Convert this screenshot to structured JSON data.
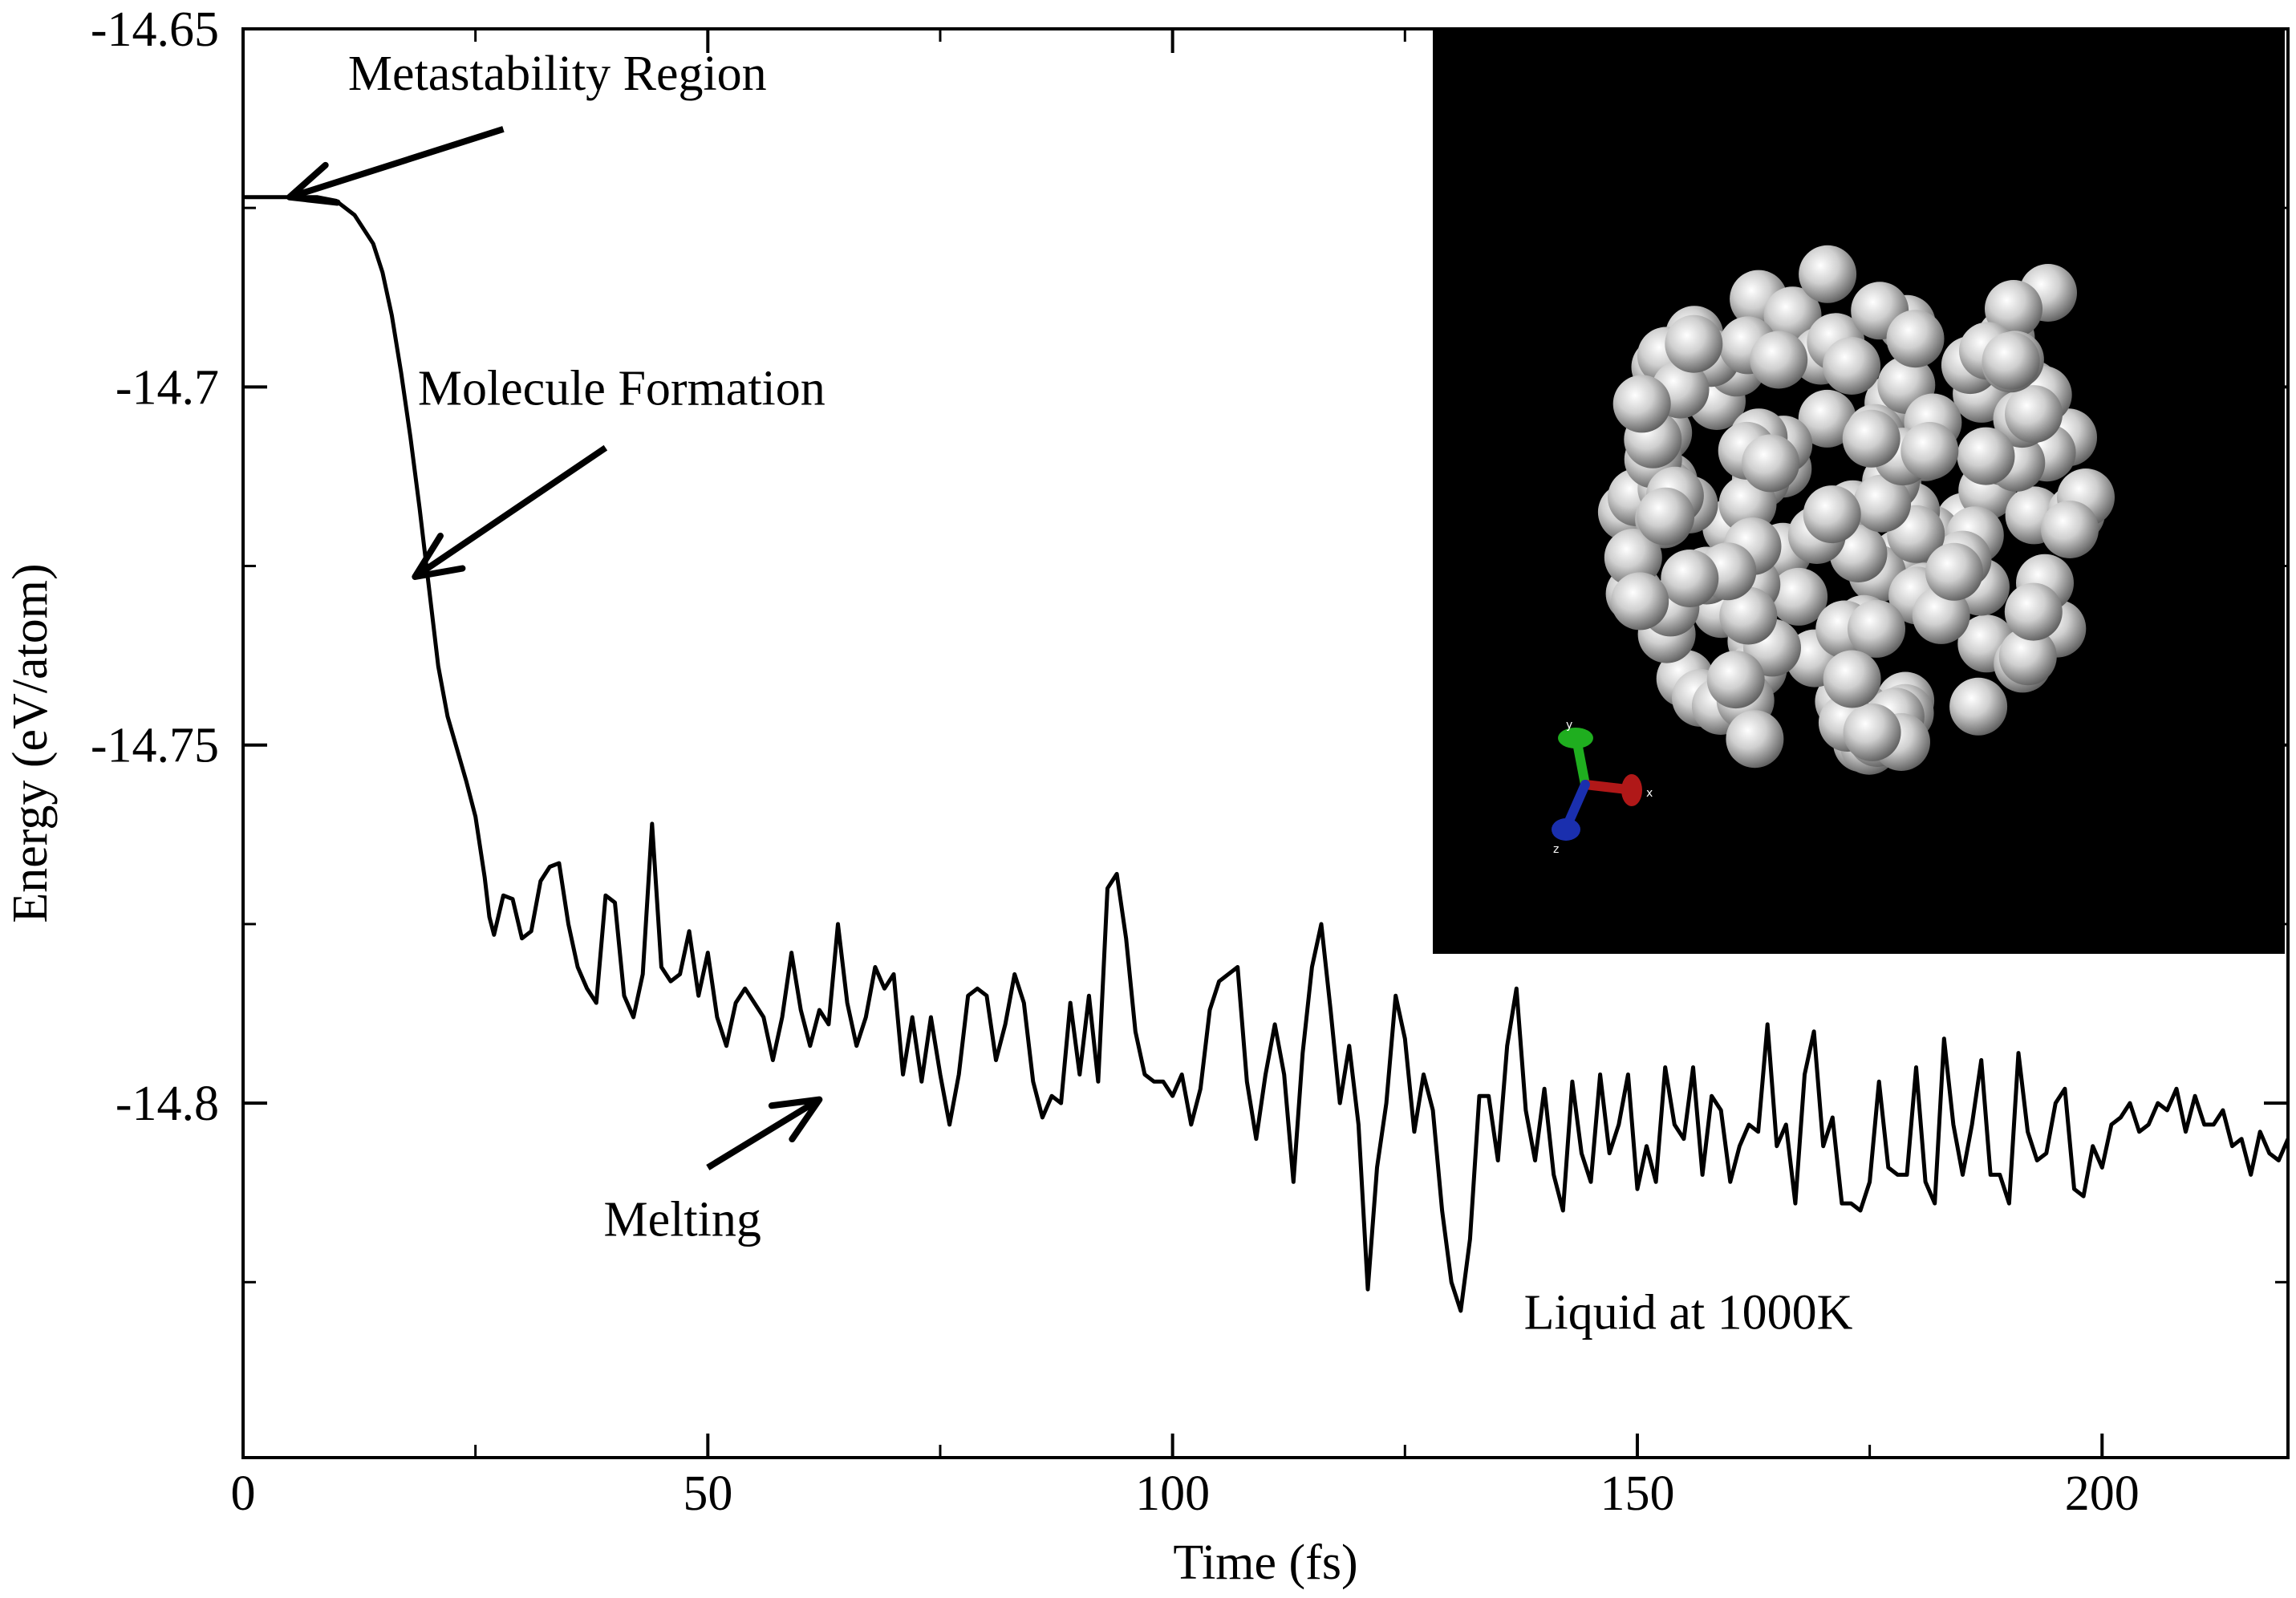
{
  "chart_data": {
    "type": "line",
    "title": "",
    "xlabel": "Time (fs)",
    "ylabel": "Energy (eV/atom)",
    "xlim": [
      0,
      220
    ],
    "ylim": [
      -14.8495,
      -14.65
    ],
    "x_ticks": [
      0,
      50,
      100,
      150,
      200
    ],
    "x_tick_labels": [
      "0",
      "50",
      "100",
      "150",
      "200"
    ],
    "y_ticks": [
      -14.65,
      -14.7,
      -14.75,
      -14.8
    ],
    "y_tick_labels": [
      "-14.65",
      "-14.7",
      "-14.75",
      "-14.8"
    ],
    "x_minor_ticks": [
      25,
      75,
      125,
      175
    ],
    "y_minor_ticks": [
      -14.675,
      -14.725,
      -14.775,
      -14.825
    ],
    "grid": false,
    "series": [
      {
        "name": "Energy",
        "color": "#000000",
        "points": [
          [
            0,
            -14.6735
          ],
          [
            3,
            -14.6735
          ],
          [
            6,
            -14.6735
          ],
          [
            8,
            -14.6735
          ],
          [
            10,
            -14.674
          ],
          [
            12,
            -14.676
          ],
          [
            14,
            -14.68
          ],
          [
            15,
            -14.684
          ],
          [
            16,
            -14.69
          ],
          [
            17,
            -14.698
          ],
          [
            18,
            -14.707
          ],
          [
            19,
            -14.717
          ],
          [
            20,
            -14.728
          ],
          [
            21,
            -14.739
          ],
          [
            22,
            -14.746
          ],
          [
            23,
            -14.7505
          ],
          [
            24,
            -14.755
          ],
          [
            25,
            -14.76
          ],
          [
            26,
            -14.7685
          ],
          [
            26.5,
            -14.774
          ],
          [
            27,
            -14.7765
          ],
          [
            28,
            -14.771
          ],
          [
            29,
            -14.7715
          ],
          [
            30,
            -14.777
          ],
          [
            31,
            -14.776
          ],
          [
            32,
            -14.769
          ],
          [
            33,
            -14.767
          ],
          [
            34,
            -14.7665
          ],
          [
            35,
            -14.775
          ],
          [
            36,
            -14.781
          ],
          [
            37,
            -14.784
          ],
          [
            38,
            -14.786
          ],
          [
            39,
            -14.771
          ],
          [
            40,
            -14.772
          ],
          [
            41,
            -14.785
          ],
          [
            42,
            -14.788
          ],
          [
            43,
            -14.782
          ],
          [
            44,
            -14.761
          ],
          [
            45,
            -14.781
          ],
          [
            46,
            -14.783
          ],
          [
            47,
            -14.782
          ],
          [
            48,
            -14.776
          ],
          [
            49,
            -14.785
          ],
          [
            50,
            -14.779
          ],
          [
            51,
            -14.788
          ],
          [
            52,
            -14.792
          ],
          [
            53,
            -14.786
          ],
          [
            54,
            -14.784
          ],
          [
            55,
            -14.786
          ],
          [
            56,
            -14.788
          ],
          [
            57,
            -14.794
          ],
          [
            58,
            -14.788
          ],
          [
            59,
            -14.779
          ],
          [
            60,
            -14.787
          ],
          [
            61,
            -14.792
          ],
          [
            62,
            -14.787
          ],
          [
            63,
            -14.789
          ],
          [
            64,
            -14.775
          ],
          [
            65,
            -14.786
          ],
          [
            66,
            -14.792
          ],
          [
            67,
            -14.788
          ],
          [
            68,
            -14.781
          ],
          [
            69,
            -14.784
          ],
          [
            70,
            -14.782
          ],
          [
            71,
            -14.796
          ],
          [
            72,
            -14.788
          ],
          [
            73,
            -14.797
          ],
          [
            74,
            -14.788
          ],
          [
            75,
            -14.796
          ],
          [
            76,
            -14.803
          ],
          [
            77,
            -14.796
          ],
          [
            78,
            -14.785
          ],
          [
            79,
            -14.784
          ],
          [
            80,
            -14.785
          ],
          [
            81,
            -14.794
          ],
          [
            82,
            -14.789
          ],
          [
            83,
            -14.782
          ],
          [
            84,
            -14.786
          ],
          [
            85,
            -14.797
          ],
          [
            86,
            -14.802
          ],
          [
            87,
            -14.799
          ],
          [
            88,
            -14.8
          ],
          [
            89,
            -14.786
          ],
          [
            90,
            -14.796
          ],
          [
            91,
            -14.785
          ],
          [
            92,
            -14.797
          ],
          [
            93,
            -14.77
          ],
          [
            94,
            -14.768
          ],
          [
            95,
            -14.777
          ],
          [
            96,
            -14.79
          ],
          [
            97,
            -14.796
          ],
          [
            98,
            -14.797
          ],
          [
            99,
            -14.797
          ],
          [
            100,
            -14.799
          ],
          [
            101,
            -14.796
          ],
          [
            102,
            -14.803
          ],
          [
            103,
            -14.798
          ],
          [
            104,
            -14.787
          ],
          [
            105,
            -14.783
          ],
          [
            106,
            -14.782
          ],
          [
            107,
            -14.781
          ],
          [
            108,
            -14.797
          ],
          [
            109,
            -14.805
          ],
          [
            110,
            -14.796
          ],
          [
            111,
            -14.789
          ],
          [
            112,
            -14.796
          ],
          [
            113,
            -14.811
          ],
          [
            114,
            -14.793
          ],
          [
            115,
            -14.781
          ],
          [
            116,
            -14.775
          ],
          [
            117,
            -14.787
          ],
          [
            118,
            -14.8
          ],
          [
            119,
            -14.792
          ],
          [
            120,
            -14.803
          ],
          [
            121,
            -14.826
          ],
          [
            122,
            -14.809
          ],
          [
            123,
            -14.8
          ],
          [
            124,
            -14.785
          ],
          [
            125,
            -14.791
          ],
          [
            126,
            -14.804
          ],
          [
            127,
            -14.796
          ],
          [
            128,
            -14.801
          ],
          [
            129,
            -14.815
          ],
          [
            130,
            -14.825
          ],
          [
            131,
            -14.829
          ],
          [
            132,
            -14.819
          ],
          [
            133,
            -14.799
          ],
          [
            134,
            -14.799
          ],
          [
            135,
            -14.808
          ],
          [
            136,
            -14.792
          ],
          [
            137,
            -14.784
          ],
          [
            138,
            -14.801
          ],
          [
            139,
            -14.808
          ],
          [
            140,
            -14.798
          ],
          [
            141,
            -14.81
          ],
          [
            142,
            -14.815
          ],
          [
            143,
            -14.797
          ],
          [
            144,
            -14.807
          ],
          [
            145,
            -14.811
          ],
          [
            146,
            -14.796
          ],
          [
            147,
            -14.807
          ],
          [
            148,
            -14.803
          ],
          [
            149,
            -14.796
          ],
          [
            150,
            -14.812
          ],
          [
            151,
            -14.806
          ],
          [
            152,
            -14.811
          ],
          [
            153,
            -14.795
          ],
          [
            154,
            -14.803
          ],
          [
            155,
            -14.805
          ],
          [
            156,
            -14.795
          ],
          [
            157,
            -14.81
          ],
          [
            158,
            -14.799
          ],
          [
            159,
            -14.801
          ],
          [
            160,
            -14.811
          ],
          [
            161,
            -14.806
          ],
          [
            162,
            -14.803
          ],
          [
            163,
            -14.804
          ],
          [
            164,
            -14.789
          ],
          [
            165,
            -14.806
          ],
          [
            166,
            -14.803
          ],
          [
            167,
            -14.814
          ],
          [
            168,
            -14.796
          ],
          [
            169,
            -14.79
          ],
          [
            170,
            -14.806
          ],
          [
            171,
            -14.802
          ],
          [
            172,
            -14.814
          ],
          [
            173,
            -14.814
          ],
          [
            174,
            -14.815
          ],
          [
            175,
            -14.811
          ],
          [
            176,
            -14.797
          ],
          [
            177,
            -14.809
          ],
          [
            178,
            -14.81
          ],
          [
            179,
            -14.81
          ],
          [
            180,
            -14.795
          ],
          [
            181,
            -14.811
          ],
          [
            182,
            -14.814
          ],
          [
            183,
            -14.791
          ],
          [
            184,
            -14.803
          ],
          [
            185,
            -14.81
          ],
          [
            186,
            -14.803
          ],
          [
            187,
            -14.794
          ],
          [
            188,
            -14.81
          ],
          [
            189,
            -14.81
          ],
          [
            190,
            -14.814
          ],
          [
            191,
            -14.793
          ],
          [
            192,
            -14.804
          ],
          [
            193,
            -14.808
          ],
          [
            194,
            -14.807
          ],
          [
            195,
            -14.8
          ],
          [
            196,
            -14.798
          ],
          [
            197,
            -14.812
          ],
          [
            198,
            -14.813
          ],
          [
            199,
            -14.806
          ],
          [
            200,
            -14.809
          ],
          [
            201,
            -14.803
          ],
          [
            202,
            -14.802
          ],
          [
            203,
            -14.8
          ],
          [
            204,
            -14.804
          ],
          [
            205,
            -14.803
          ],
          [
            206,
            -14.8
          ],
          [
            207,
            -14.801
          ],
          [
            208,
            -14.798
          ],
          [
            209,
            -14.804
          ],
          [
            210,
            -14.799
          ],
          [
            211,
            -14.803
          ],
          [
            212,
            -14.803
          ],
          [
            213,
            -14.801
          ],
          [
            214,
            -14.806
          ],
          [
            215,
            -14.805
          ],
          [
            216,
            -14.81
          ],
          [
            217,
            -14.804
          ],
          [
            218,
            -14.807
          ],
          [
            219,
            -14.808
          ],
          [
            220,
            -14.805
          ]
        ]
      }
    ],
    "annotations": [
      {
        "text": "Metastability Region",
        "arrow_tail": [
          28,
          -14.664
        ],
        "arrow_head": [
          5,
          -14.6735
        ]
      },
      {
        "text": "Molecule Formation",
        "arrow_tail": [
          39,
          -14.7085
        ],
        "arrow_head": [
          18.5,
          -14.7265
        ]
      },
      {
        "text": "Melting",
        "arrow_tail": [
          50,
          -14.809
        ],
        "arrow_head": [
          62,
          -14.7995
        ]
      },
      {
        "text": "Liquid at 1000K"
      }
    ],
    "inset": {
      "description": "molecular snapshot",
      "background": "#000000",
      "atom_color": "#cfcfcf",
      "axes_labels": [
        "y",
        "x",
        "z"
      ],
      "axes_colors": [
        "#1fae1f",
        "#b01818",
        "#1a2fae"
      ]
    }
  }
}
